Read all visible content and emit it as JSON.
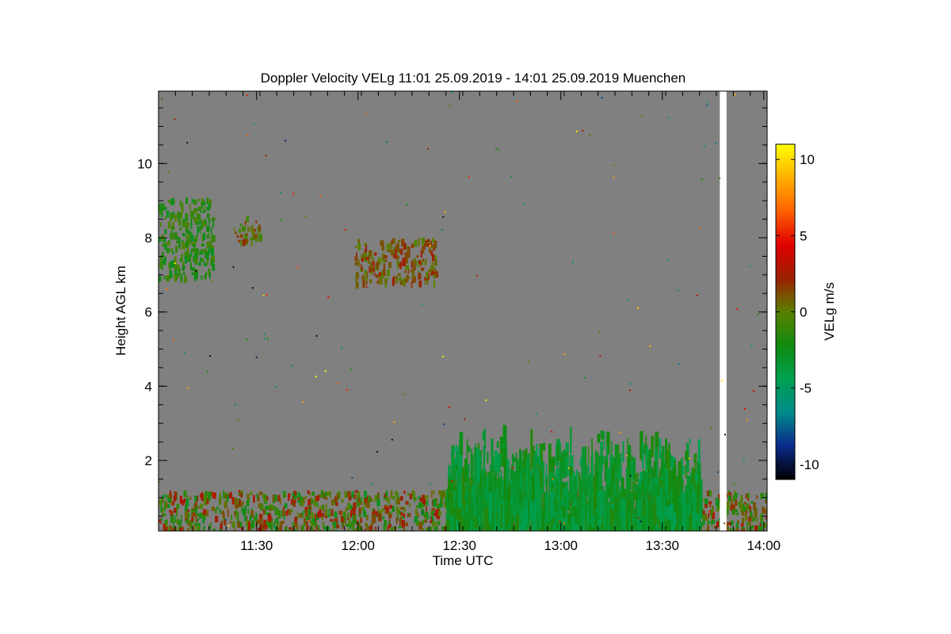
{
  "chart_data": {
    "type": "heatmap",
    "title": "Doppler Velocity VELg   11:01 25.09.2019 - 14:01 25.09.2019 Muenchen",
    "xlabel": "Time UTC",
    "ylabel": "Height AGL km",
    "x_ticks": [
      "11:30",
      "12:00",
      "12:30",
      "13:00",
      "13:30",
      "14:00"
    ],
    "x_tick_values_min": [
      29,
      59,
      89,
      119,
      149,
      179
    ],
    "xlim_min": [
      0,
      180
    ],
    "y_ticks": [
      "2",
      "4",
      "6",
      "8",
      "10"
    ],
    "y_tick_values": [
      2,
      4,
      6,
      8,
      10
    ],
    "ylim": [
      0.1,
      11.95
    ],
    "colorbar": {
      "label": "VELg m/s",
      "range": [
        -11,
        11
      ],
      "ticks": [
        "10",
        "5",
        "0",
        "-5",
        "-10"
      ],
      "tick_values": [
        10,
        5,
        0,
        -5,
        -10
      ],
      "colors": [
        "#000000",
        "#0b2a8a",
        "#008a8a",
        "#00a050",
        "#108a10",
        "#5a8000",
        "#9a2000",
        "#e00000",
        "#ff6000",
        "#ffb000",
        "#ffff00"
      ]
    },
    "background_color": "#808080",
    "features": [
      {
        "desc": "cloud layer",
        "time_min": [
          0,
          16
        ],
        "height_km": [
          6.9,
          9.1
        ],
        "velocity_ms": -1.5
      },
      {
        "desc": "cloud patch",
        "time_min": [
          22,
          30
        ],
        "height_km": [
          7.9,
          8.6
        ],
        "velocity_ms": 0.5
      },
      {
        "desc": "cloud layer",
        "time_min": [
          58,
          82
        ],
        "height_km": [
          6.8,
          8.0
        ],
        "velocity_ms": 1.0
      },
      {
        "desc": "boundary layer",
        "time_min": [
          0,
          180
        ],
        "height_km": [
          0.1,
          1.2
        ],
        "velocity_ms": 0.0
      },
      {
        "desc": "convective columns",
        "time_min": [
          85,
          160
        ],
        "height_km": [
          0.1,
          3.0
        ],
        "velocity_ms": -3.0
      },
      {
        "desc": "data gap",
        "time_min": [
          166,
          168
        ],
        "height_km": [
          0.1,
          11.95
        ],
        "velocity_ms": null
      }
    ]
  }
}
